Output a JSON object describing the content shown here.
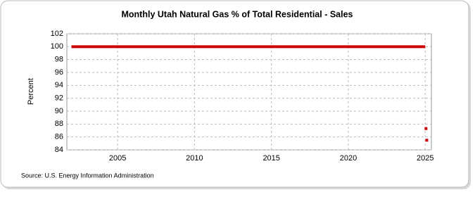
{
  "chart_data": {
    "type": "line",
    "title": "Monthly Utah Natural Gas % of Total Residential - Sales",
    "y_label": "Percent",
    "source": "Source: U.S. Energy Information Administration",
    "series": [
      {
        "color": "#cc0000",
        "x": [
          2002,
          2025
        ],
        "values": [
          100,
          100
        ],
        "mode": "line"
      },
      {
        "color": "#cc0000",
        "x": [
          2025.05,
          2025.1
        ],
        "values": [
          87.3,
          85.5
        ],
        "mode": "markers"
      }
    ],
    "xlim": [
      2001.7,
      2025.4
    ],
    "xticks": [
      2005,
      2010,
      2015,
      2020,
      2025
    ],
    "ylim": [
      84,
      102
    ],
    "yticks": [
      84,
      86,
      88,
      90,
      92,
      94,
      96,
      98,
      100,
      102
    ],
    "grid": true
  }
}
